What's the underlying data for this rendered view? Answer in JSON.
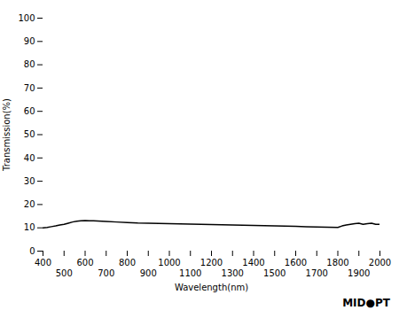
{
  "chart_data": {
    "type": "line",
    "xlabel": "Wavelength(nm)",
    "ylabel": "Transmission(%)",
    "annotations": [
      "MID●PT"
    ],
    "x": [
      400,
      420,
      440,
      460,
      480,
      500,
      520,
      540,
      560,
      580,
      600,
      620,
      640,
      660,
      680,
      700,
      750,
      800,
      850,
      900,
      950,
      1000,
      1050,
      1100,
      1150,
      1200,
      1250,
      1300,
      1350,
      1400,
      1450,
      1500,
      1550,
      1600,
      1650,
      1700,
      1750,
      1800,
      1820,
      1840,
      1860,
      1880,
      1900,
      1920,
      1940,
      1960,
      1980,
      2000
    ],
    "values": [
      10.0,
      10.2,
      10.5,
      10.8,
      11.2,
      11.5,
      12.0,
      12.5,
      12.8,
      13.0,
      13.1,
      13.0,
      13.0,
      12.9,
      12.8,
      12.7,
      12.5,
      12.3,
      12.1,
      12.0,
      11.9,
      11.8,
      11.7,
      11.6,
      11.5,
      11.4,
      11.3,
      11.2,
      11.1,
      11.0,
      10.9,
      10.8,
      10.7,
      10.6,
      10.5,
      10.4,
      10.3,
      10.2,
      10.8,
      11.2,
      11.5,
      11.8,
      12.0,
      11.5,
      11.8,
      12.0,
      11.5,
      11.5
    ],
    "xlim": [
      400,
      2000
    ],
    "ylim": [
      0,
      100
    ],
    "xticks": [
      400,
      500,
      600,
      700,
      800,
      900,
      1000,
      1100,
      1200,
      1300,
      1400,
      1500,
      1600,
      1700,
      1800,
      1900,
      2000
    ],
    "yticks": [
      0,
      10,
      20,
      30,
      40,
      50,
      60,
      70,
      80,
      90,
      100
    ],
    "grid": false
  }
}
